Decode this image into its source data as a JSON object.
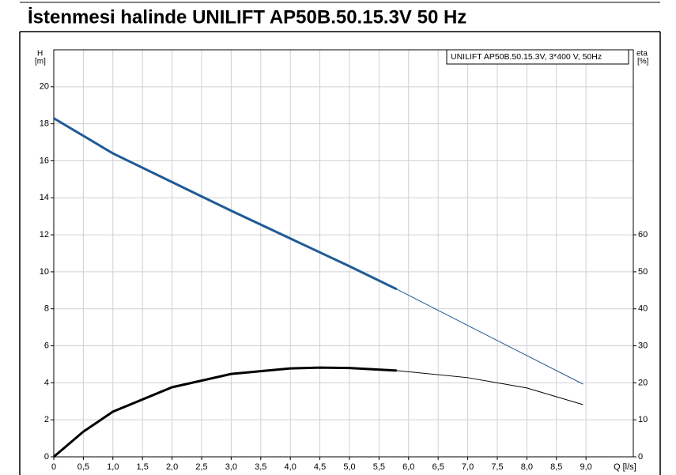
{
  "chart_data": {
    "type": "line",
    "title": "İstenmesi halinde UNILIFT AP50B.50.15.3V 50 Hz",
    "annotation": "UNILIFT AP50B.50.15.3V, 3*400 V, 50Hz",
    "y_label": "H",
    "y_unit": "[m]",
    "y2_label": "eta",
    "y2_unit": "[%]",
    "x_label": "Q [l/s]",
    "xlim": [
      0,
      9.8
    ],
    "xticks": [
      0,
      {
        "value": 0.5,
        "label": "0,5"
      },
      {
        "value": 1,
        "label": "1,0"
      },
      {
        "value": 1.5,
        "label": "1,5"
      },
      {
        "value": 2,
        "label": "2,0"
      },
      {
        "value": 2.5,
        "label": "2,5"
      },
      {
        "value": 3,
        "label": "3,0"
      },
      {
        "value": 3.5,
        "label": "3,5"
      },
      {
        "value": 4,
        "label": "4,0"
      },
      {
        "value": 4.5,
        "label": "4,5"
      },
      {
        "value": 5,
        "label": "5,0"
      },
      {
        "value": 5.5,
        "label": "5,5"
      },
      {
        "value": 6,
        "label": "6,0"
      },
      {
        "value": 6.5,
        "label": "6,5"
      },
      {
        "value": 7,
        "label": "7,0"
      },
      {
        "value": 7.5,
        "label": "7,5"
      },
      {
        "value": 8,
        "label": "8,0"
      },
      {
        "value": 8.5,
        "label": "8,5"
      },
      {
        "value": 9,
        "label": "9,0"
      }
    ],
    "ylim": [
      0,
      22
    ],
    "yticks": [
      0,
      2,
      4,
      6,
      8,
      10,
      12,
      14,
      16,
      18,
      20
    ],
    "y2lim": [
      0,
      110
    ],
    "y2ticks": [
      0,
      10,
      20,
      30,
      40,
      50,
      60
    ],
    "grid": true,
    "series": [
      {
        "color": "#1f5a96",
        "style": "bold",
        "x": [
          0,
          1,
          2,
          3,
          4,
          5,
          5.8
        ],
        "values": [
          18.3,
          16.4,
          14.85,
          13.3,
          11.8,
          10.3,
          9.06
        ]
      },
      {
        "color": "#1f5a96",
        "style": "thin",
        "x": [
          5.8,
          7,
          8.95
        ],
        "values": [
          9.06,
          7.1,
          3.93
        ]
      },
      {
        "color": "#000000",
        "style": "bold",
        "axis": "y2",
        "x": [
          0,
          0.5,
          1,
          2,
          3,
          4,
          4.5,
          5,
          5.8
        ],
        "values": [
          0,
          6.8,
          12.2,
          18.8,
          22.4,
          23.9,
          24.1,
          24.0,
          23.3
        ]
      },
      {
        "color": "#000000",
        "style": "thin",
        "axis": "y2",
        "x": [
          5.8,
          7,
          8,
          8.95
        ],
        "values": [
          23.3,
          21.4,
          18.6,
          14.1
        ]
      }
    ]
  }
}
